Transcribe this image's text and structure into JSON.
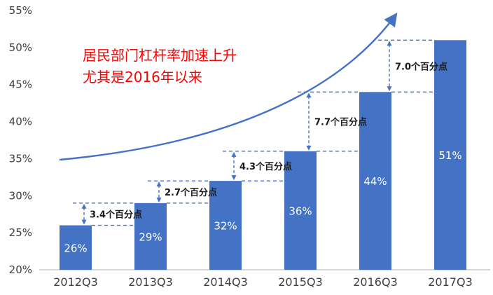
{
  "chart_data": {
    "type": "bar",
    "title": "",
    "annotation_lines": [
      "居民部门杠杆率加速上升",
      "尤其是2016年以来"
    ],
    "categories": [
      "2012Q3",
      "2013Q3",
      "2014Q3",
      "2015Q3",
      "2016Q3",
      "2017Q3"
    ],
    "values": [
      26,
      29,
      32,
      36,
      44,
      51
    ],
    "bar_labels": [
      "26%",
      "29%",
      "32%",
      "36%",
      "44%",
      "51%"
    ],
    "diff_labels": [
      "3.4个百分点",
      "2.7个百分点",
      "4.3个百分点",
      "7.7个百分点",
      "7.0个百分点"
    ],
    "diff_values": [
      3.4,
      2.7,
      4.3,
      7.7,
      7.0
    ],
    "y_ticks": [
      {
        "value": 55,
        "label": "55%"
      },
      {
        "value": 50,
        "label": "50%"
      },
      {
        "value": 45,
        "label": "45%"
      },
      {
        "value": 40,
        "label": "40%"
      },
      {
        "value": 35,
        "label": "35%"
      },
      {
        "value": 30,
        "label": "30%"
      },
      {
        "value": 25,
        "label": "25%"
      },
      {
        "value": 20,
        "label": "20%"
      }
    ],
    "ylim": [
      20,
      55
    ],
    "xlabel": "",
    "ylabel": "",
    "legend": "none",
    "grid": "off",
    "colors": {
      "bar": "#4472C4",
      "dashed_line": "#4472C4",
      "trend_arrow": "#4472C4",
      "annotation_text": "#FF0000",
      "axis_text": "#404040",
      "bar_label_text": "#FFFFFF",
      "diff_label_text": "#1a1a1a",
      "axis_line": "#BFBFBF",
      "background": "#FFFFFF"
    }
  }
}
